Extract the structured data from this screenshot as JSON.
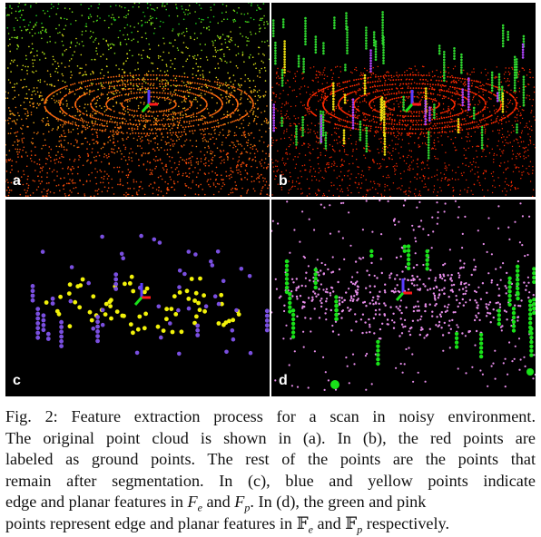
{
  "figure": {
    "panels": [
      {
        "id": "a",
        "label": "a"
      },
      {
        "id": "b",
        "label": "b"
      },
      {
        "id": "c",
        "label": "c"
      },
      {
        "id": "d",
        "label": "d"
      }
    ],
    "caption": {
      "line1": "Fig. 2: Feature extraction process for a scan in noisy environment.",
      "line2": "The original point cloud is shown in (a). In (b), the red points are",
      "line3": "labeled as ground points. The rest of the points are the points that",
      "line4": "remain after segmentation. In (c), blue and yellow points indicate",
      "line5_a": "edge and planar features in ",
      "Fe_symbol": "F",
      "Fe_sub": "e",
      "line5_and": " and ",
      "Fp_symbol": "F",
      "Fp_sub": "p",
      "line5_end": ". In (d), the green and pink",
      "line6_a": "points represent edge and planar features in ",
      "bbFe_symbol": "𝔽",
      "bbFe_sub": "e",
      "line6_and": " and ",
      "bbFp_symbol": "𝔽",
      "bbFp_sub": "p",
      "line6_end": " respectively."
    },
    "colors": {
      "background": "#000000",
      "ground": "#ff2a00",
      "edge_blue": "#7a4fe0",
      "planar_yellow": "#f2f20a",
      "edge_green": "#19e219",
      "planar_pink": "#e58ce8"
    }
  }
}
